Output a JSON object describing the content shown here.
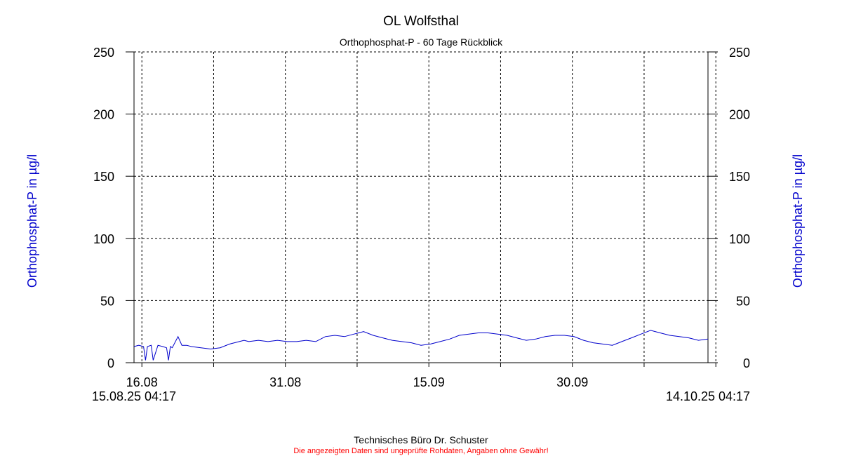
{
  "chart_data": {
    "type": "line",
    "title": "OL Wolfsthal",
    "subtitle": "Orthophosphat-P - 60 Tage Rückblick",
    "ylabel_left": "Orthophosphat-P in µg/l",
    "ylabel_right": "Orthophosphat-P in µg/l",
    "ylim": [
      0,
      250
    ],
    "yticks": [
      "0",
      "50",
      "100",
      "150",
      "200",
      "250"
    ],
    "x_start": "15.08.25 04:17",
    "x_end": "14.10.25 04:17",
    "xtick_labels": [
      "16.08",
      "31.08",
      "15.09",
      "30.09"
    ],
    "grid": true,
    "line_color": "#0000cc",
    "series": [
      {
        "x": [
          0,
          0.5,
          1,
          1.2,
          1.4,
          1.8,
          2,
          2.5,
          3,
          3.4,
          3.6,
          3.8,
          4,
          4.6,
          5,
          5.5,
          6,
          7,
          8,
          9,
          10,
          11,
          11.5,
          12,
          13,
          14,
          15,
          16,
          17,
          18,
          19,
          20,
          21,
          22,
          23,
          24,
          25,
          26,
          27,
          28,
          29,
          30,
          31,
          32,
          33,
          34,
          35,
          36,
          37,
          38,
          39,
          40,
          41,
          42,
          43,
          44,
          45,
          46,
          47,
          48,
          49,
          50,
          51,
          52,
          53,
          54,
          55,
          56,
          57,
          58,
          59,
          60
        ],
        "y": [
          13,
          14,
          13,
          2,
          13,
          14,
          2,
          14,
          13,
          12,
          2,
          13,
          12,
          21,
          14,
          14,
          13,
          12,
          11,
          12,
          15,
          17,
          18,
          17,
          18,
          17,
          18,
          17,
          17,
          18,
          17,
          21,
          22,
          21,
          23,
          25,
          22,
          20,
          18,
          17,
          16,
          14,
          15,
          17,
          19,
          22,
          23,
          24,
          24,
          23,
          22,
          20,
          18,
          19,
          21,
          22,
          22,
          21,
          18,
          16,
          15,
          14,
          17,
          20,
          23,
          26,
          24,
          22,
          21,
          20,
          18,
          19
        ]
      }
    ]
  },
  "footer": {
    "company": "Technisches Büro Dr. Schuster",
    "disclaimer": "Die angezeigten Daten sind ungeprüfte Rohdaten, Angaben ohne Gewähr!"
  }
}
